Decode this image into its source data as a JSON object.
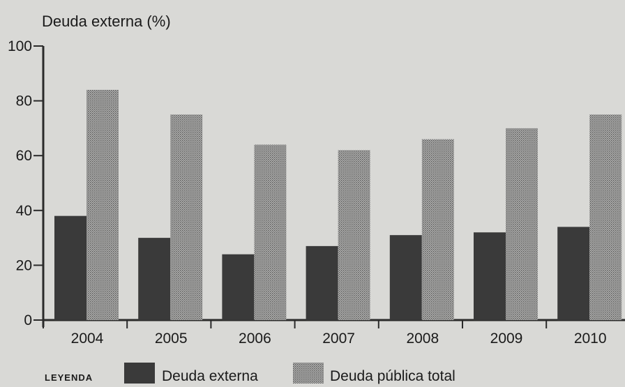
{
  "chart_data": {
    "type": "bar",
    "title": "Deuda externa (%)",
    "categories": [
      "2004",
      "2005",
      "2006",
      "2007",
      "2008",
      "2009",
      "2010"
    ],
    "series": [
      {
        "name": "Deuda externa",
        "values": [
          38,
          30,
          24,
          27,
          31,
          32,
          34
        ]
      },
      {
        "name": "Deuda pública total",
        "values": [
          84,
          75,
          64,
          62,
          66,
          70,
          75
        ]
      }
    ],
    "ylim": [
      0,
      100
    ],
    "yticks": [
      0,
      20,
      40,
      60,
      80,
      100
    ],
    "grid": false,
    "legend": {
      "label": "LEYENDA",
      "placement": "bottom-left"
    },
    "colors": {
      "background": "#d9d9d6",
      "axis": "#2a2a2a",
      "series": [
        "#3a3a3a",
        "#a9a9a9"
      ]
    }
  }
}
